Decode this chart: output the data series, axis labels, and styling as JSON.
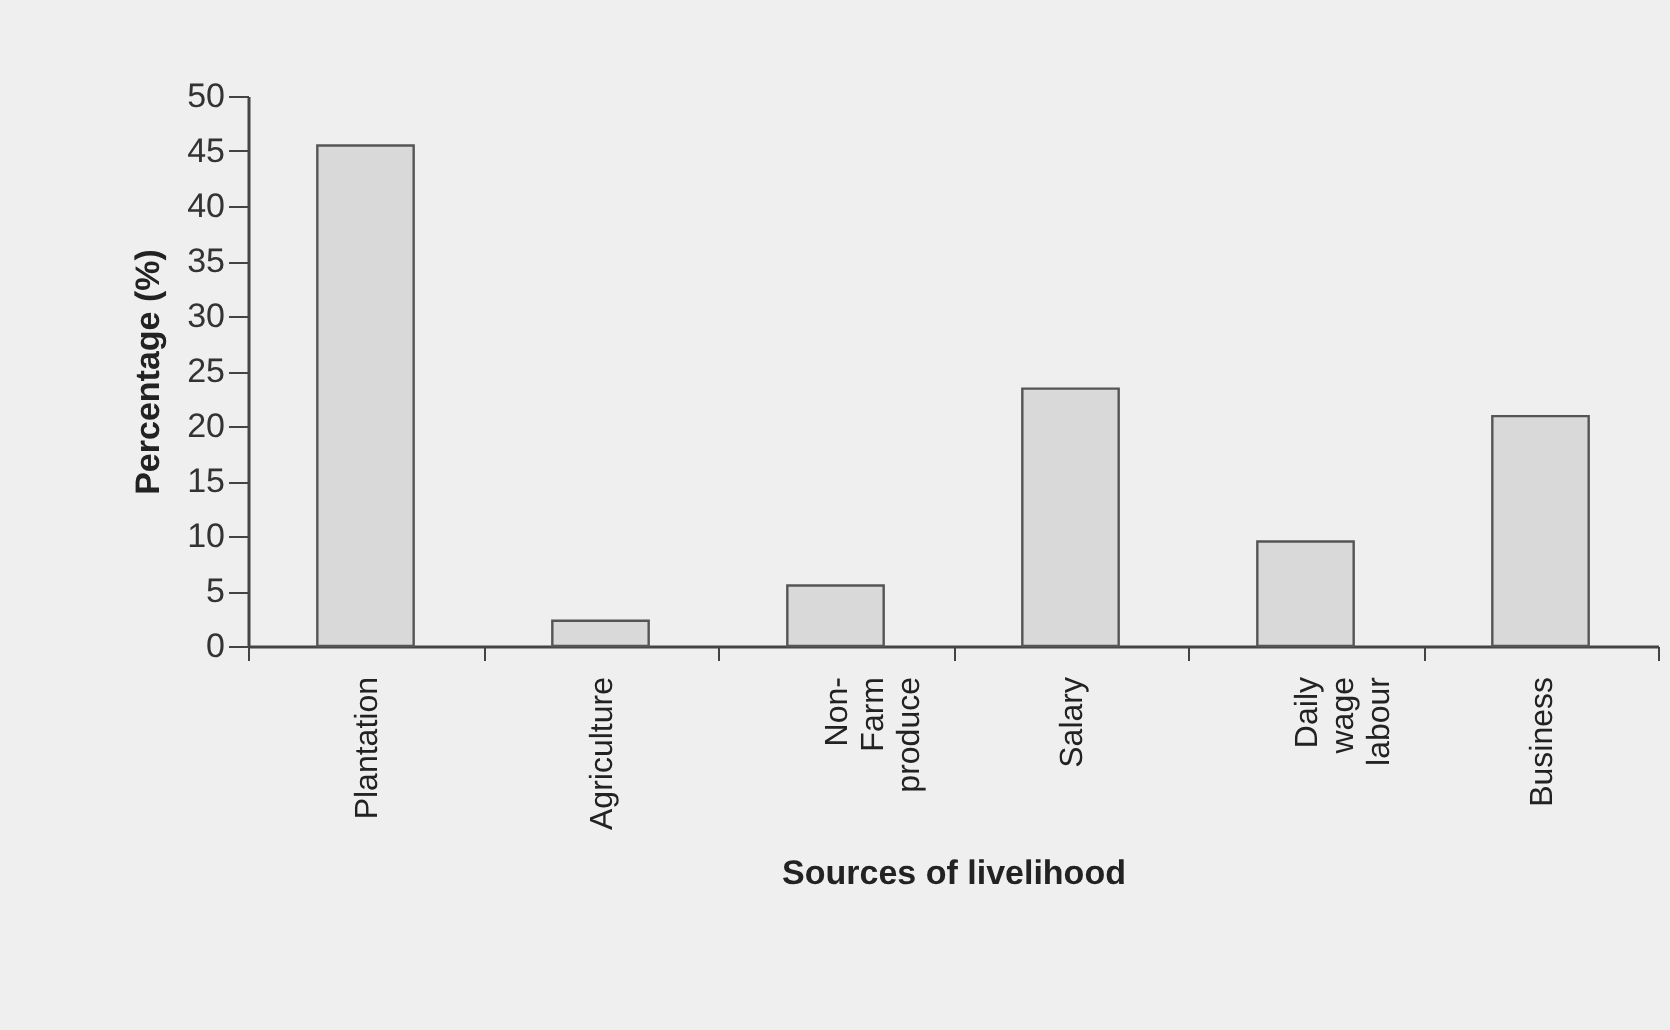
{
  "chart_data": {
    "type": "bar",
    "xlabel": "Sources of livelihood",
    "ylabel": "Percentage (%)",
    "categories": [
      "Plantation",
      "Agriculture",
      "Non-Farm produce",
      "Salary",
      "Daily wage labour",
      "Business"
    ],
    "values": [
      45.5,
      2.3,
      5.5,
      23.4,
      9.5,
      20.9
    ],
    "color": "#d9d9d9",
    "ylim": [
      0,
      50
    ],
    "yticks": [
      0,
      5,
      10,
      15,
      20,
      25,
      30,
      35,
      40,
      45,
      50
    ],
    "grid": false
  }
}
